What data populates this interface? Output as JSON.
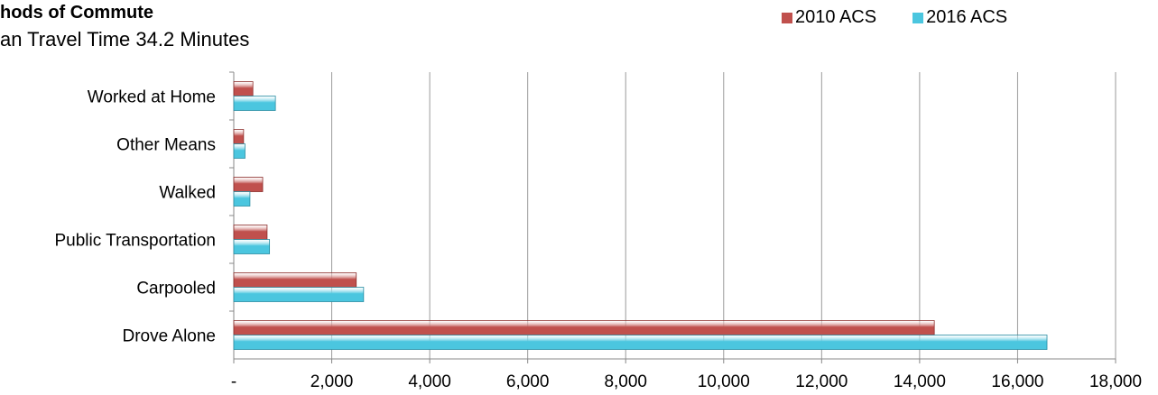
{
  "chart_data": {
    "type": "bar",
    "orientation": "horizontal",
    "title": "hods of Commute",
    "subtitle": "an Travel Time 34.2 Minutes",
    "categories": [
      "Drove Alone",
      "Carpooled",
      "Public Transportation",
      "Walked",
      "Other Means",
      "Worked at Home"
    ],
    "series": [
      {
        "name": "2010 ACS",
        "values": [
          14300,
          2500,
          680,
          590,
          200,
          390
        ],
        "color": "#c0504d"
      },
      {
        "name": "2016 ACS",
        "values": [
          16600,
          2650,
          730,
          330,
          230,
          850
        ],
        "color": "#4bc6df"
      }
    ],
    "xlim": [
      0,
      18000
    ],
    "xticks": [
      "-",
      "2,000",
      "4,000",
      "6,000",
      "8,000",
      "10,000",
      "12,000",
      "14,000",
      "16,000",
      "18,000"
    ],
    "grid": true,
    "legend_position": "top-right"
  }
}
